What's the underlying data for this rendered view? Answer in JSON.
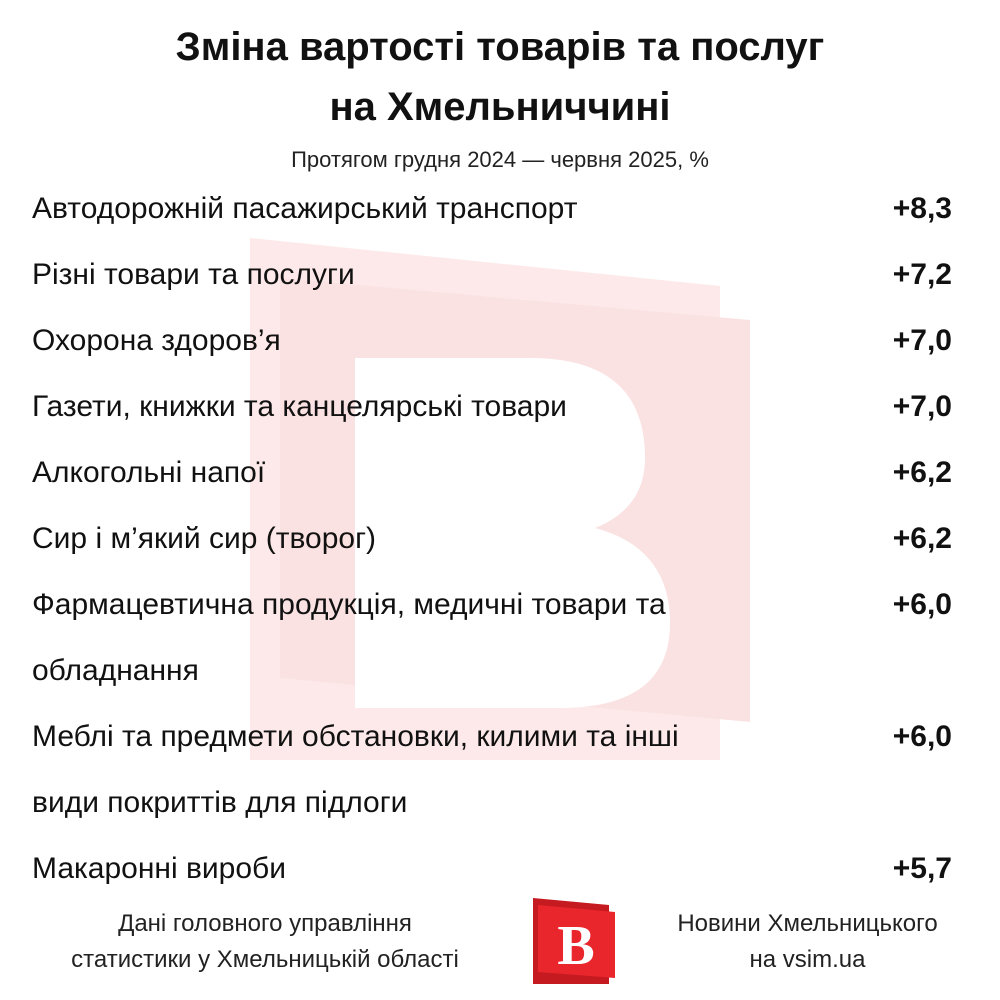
{
  "chart_data": {
    "type": "table",
    "title": [
      "Зміна вартості товарів та послуг",
      "на Хмельниччині"
    ],
    "subtitle": "Протягом грудня 2024 — червня 2025, %",
    "rows": [
      {
        "label": [
          "Автодорожній пасажирський транспорт"
        ],
        "value": "+8,3"
      },
      {
        "label": [
          "Різні товари та послуги"
        ],
        "value": "+7,2"
      },
      {
        "label": [
          "Охорона здоров’я"
        ],
        "value": "+7,0"
      },
      {
        "label": [
          "Газети, книжки та канцелярські товари"
        ],
        "value": "+7,0"
      },
      {
        "label": [
          "Алкогольні напої"
        ],
        "value": "+6,2"
      },
      {
        "label": [
          "Сир і м’який сир (творог)"
        ],
        "value": "+6,2"
      },
      {
        "label": [
          "Фармацевтична продукція, медичні товари та",
          "обладнання"
        ],
        "value": "+6,0"
      },
      {
        "label": [
          "Меблі та предмети обстановки, килими та інші",
          "види покриттів для підлоги"
        ],
        "value": "+6,0"
      },
      {
        "label": [
          "Макаронні вироби"
        ],
        "value": "+5,7"
      }
    ]
  },
  "footer": {
    "source": [
      "Дані головного управління",
      "статистики у Хмельницькій області"
    ],
    "publisher": [
      "Новини Хмельницького",
      "на vsim.ua"
    ],
    "logo_letter": "B"
  },
  "colors": {
    "accent": "#e8262c",
    "watermark": "#fbe3e3",
    "text": "#111111"
  }
}
